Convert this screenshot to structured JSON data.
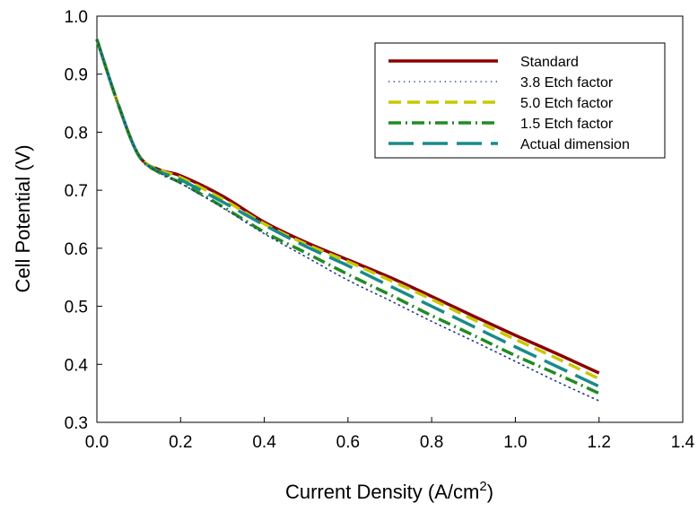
{
  "chart_data": {
    "type": "line",
    "xlabel": "Current Density (A/cm",
    "xlabel_sup": "2",
    "xlabel_end": ")",
    "ylabel": "Cell Potential (V)",
    "xlim": [
      0.0,
      1.4
    ],
    "ylim": [
      0.3,
      1.0
    ],
    "xticks": [
      "0.0",
      "0.2",
      "0.4",
      "0.6",
      "0.8",
      "1.0",
      "1.2",
      "1.4"
    ],
    "yticks": [
      "0.3",
      "0.4",
      "0.5",
      "0.6",
      "0.7",
      "0.8",
      "0.9",
      "1.0"
    ],
    "xtick_values": [
      0.0,
      0.2,
      0.4,
      0.6,
      0.8,
      1.0,
      1.2,
      1.4
    ],
    "ytick_values": [
      0.3,
      0.4,
      0.5,
      0.6,
      0.7,
      0.8,
      0.9,
      1.0
    ],
    "grid": false,
    "legend_position": "top-right",
    "x": [
      0.0,
      0.05,
      0.1,
      0.15,
      0.2,
      0.3,
      0.4,
      0.5,
      0.6,
      0.7,
      0.8,
      0.9,
      1.0,
      1.1,
      1.2
    ],
    "series": [
      {
        "name": "Standard",
        "color": "#8b0000",
        "style": "solid",
        "values": [
          0.96,
          0.85,
          0.76,
          0.735,
          0.725,
          0.69,
          0.645,
          0.61,
          0.58,
          0.55,
          0.517,
          0.483,
          0.45,
          0.418,
          0.385
        ]
      },
      {
        "name": "3.8 Etch factor",
        "color": "#1f3a8a",
        "style": "dotted",
        "values": [
          0.96,
          0.85,
          0.76,
          0.73,
          0.712,
          0.67,
          0.625,
          0.585,
          0.545,
          0.51,
          0.474,
          0.44,
          0.405,
          0.37,
          0.337
        ]
      },
      {
        "name": "5.0 Etch factor",
        "color": "#c8c800",
        "style": "dashed",
        "values": [
          0.96,
          0.85,
          0.76,
          0.735,
          0.722,
          0.685,
          0.642,
          0.607,
          0.577,
          0.545,
          0.512,
          0.477,
          0.443,
          0.41,
          0.375
        ]
      },
      {
        "name": "1.5 Etch factor",
        "color": "#228b22",
        "style": "dashdot",
        "values": [
          0.96,
          0.85,
          0.76,
          0.73,
          0.713,
          0.672,
          0.628,
          0.592,
          0.555,
          0.52,
          0.484,
          0.45,
          0.415,
          0.383,
          0.35
        ]
      },
      {
        "name": "Actual dimension",
        "color": "#1a8a8a",
        "style": "longdash",
        "values": [
          0.96,
          0.85,
          0.76,
          0.732,
          0.718,
          0.68,
          0.64,
          0.603,
          0.57,
          0.535,
          0.5,
          0.465,
          0.43,
          0.396,
          0.362
        ]
      }
    ]
  }
}
